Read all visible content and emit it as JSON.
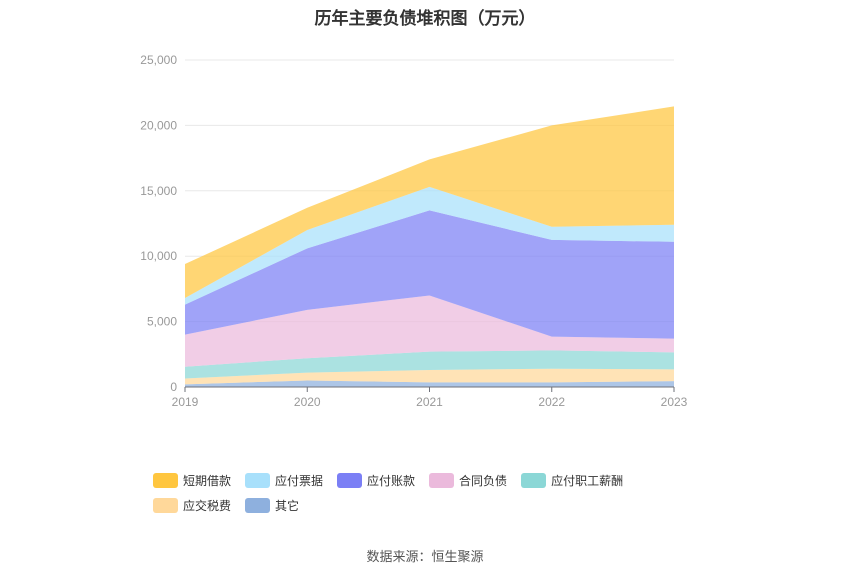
{
  "title": "历年主要负债堆积图（万元）",
  "source": "数据来源：恒生聚源",
  "chart_data": {
    "type": "area",
    "stacked": true,
    "x": [
      "2019",
      "2020",
      "2021",
      "2022",
      "2023"
    ],
    "ylim": [
      0,
      25000
    ],
    "yticks": [
      "0",
      "5,000",
      "10,000",
      "15,000",
      "20,000",
      "25,000"
    ],
    "grid": true,
    "legend_position": "bottom",
    "series": [
      {
        "name": "其它",
        "color": "#8eb0de",
        "values": [
          200,
          500,
          350,
          350,
          450
        ]
      },
      {
        "name": "应交税费",
        "color": "#ffd89a",
        "values": [
          450,
          600,
          950,
          1050,
          900
        ]
      },
      {
        "name": "应付职工薪酬",
        "color": "#8bd7d6",
        "values": [
          900,
          1100,
          1400,
          1400,
          1300
        ]
      },
      {
        "name": "合同负债",
        "color": "#ebbadc",
        "values": [
          2450,
          3700,
          4300,
          1050,
          1050
        ]
      },
      {
        "name": "应付账款",
        "color": "#7b7ff5",
        "values": [
          2300,
          4700,
          6500,
          7400,
          7400
        ]
      },
      {
        "name": "应付票据",
        "color": "#a8e0fb",
        "values": [
          500,
          1400,
          1800,
          1000,
          1300
        ]
      },
      {
        "name": "短期借款",
        "color": "#ffc63f",
        "values": [
          2600,
          1700,
          2100,
          7750,
          9050
        ]
      }
    ]
  }
}
